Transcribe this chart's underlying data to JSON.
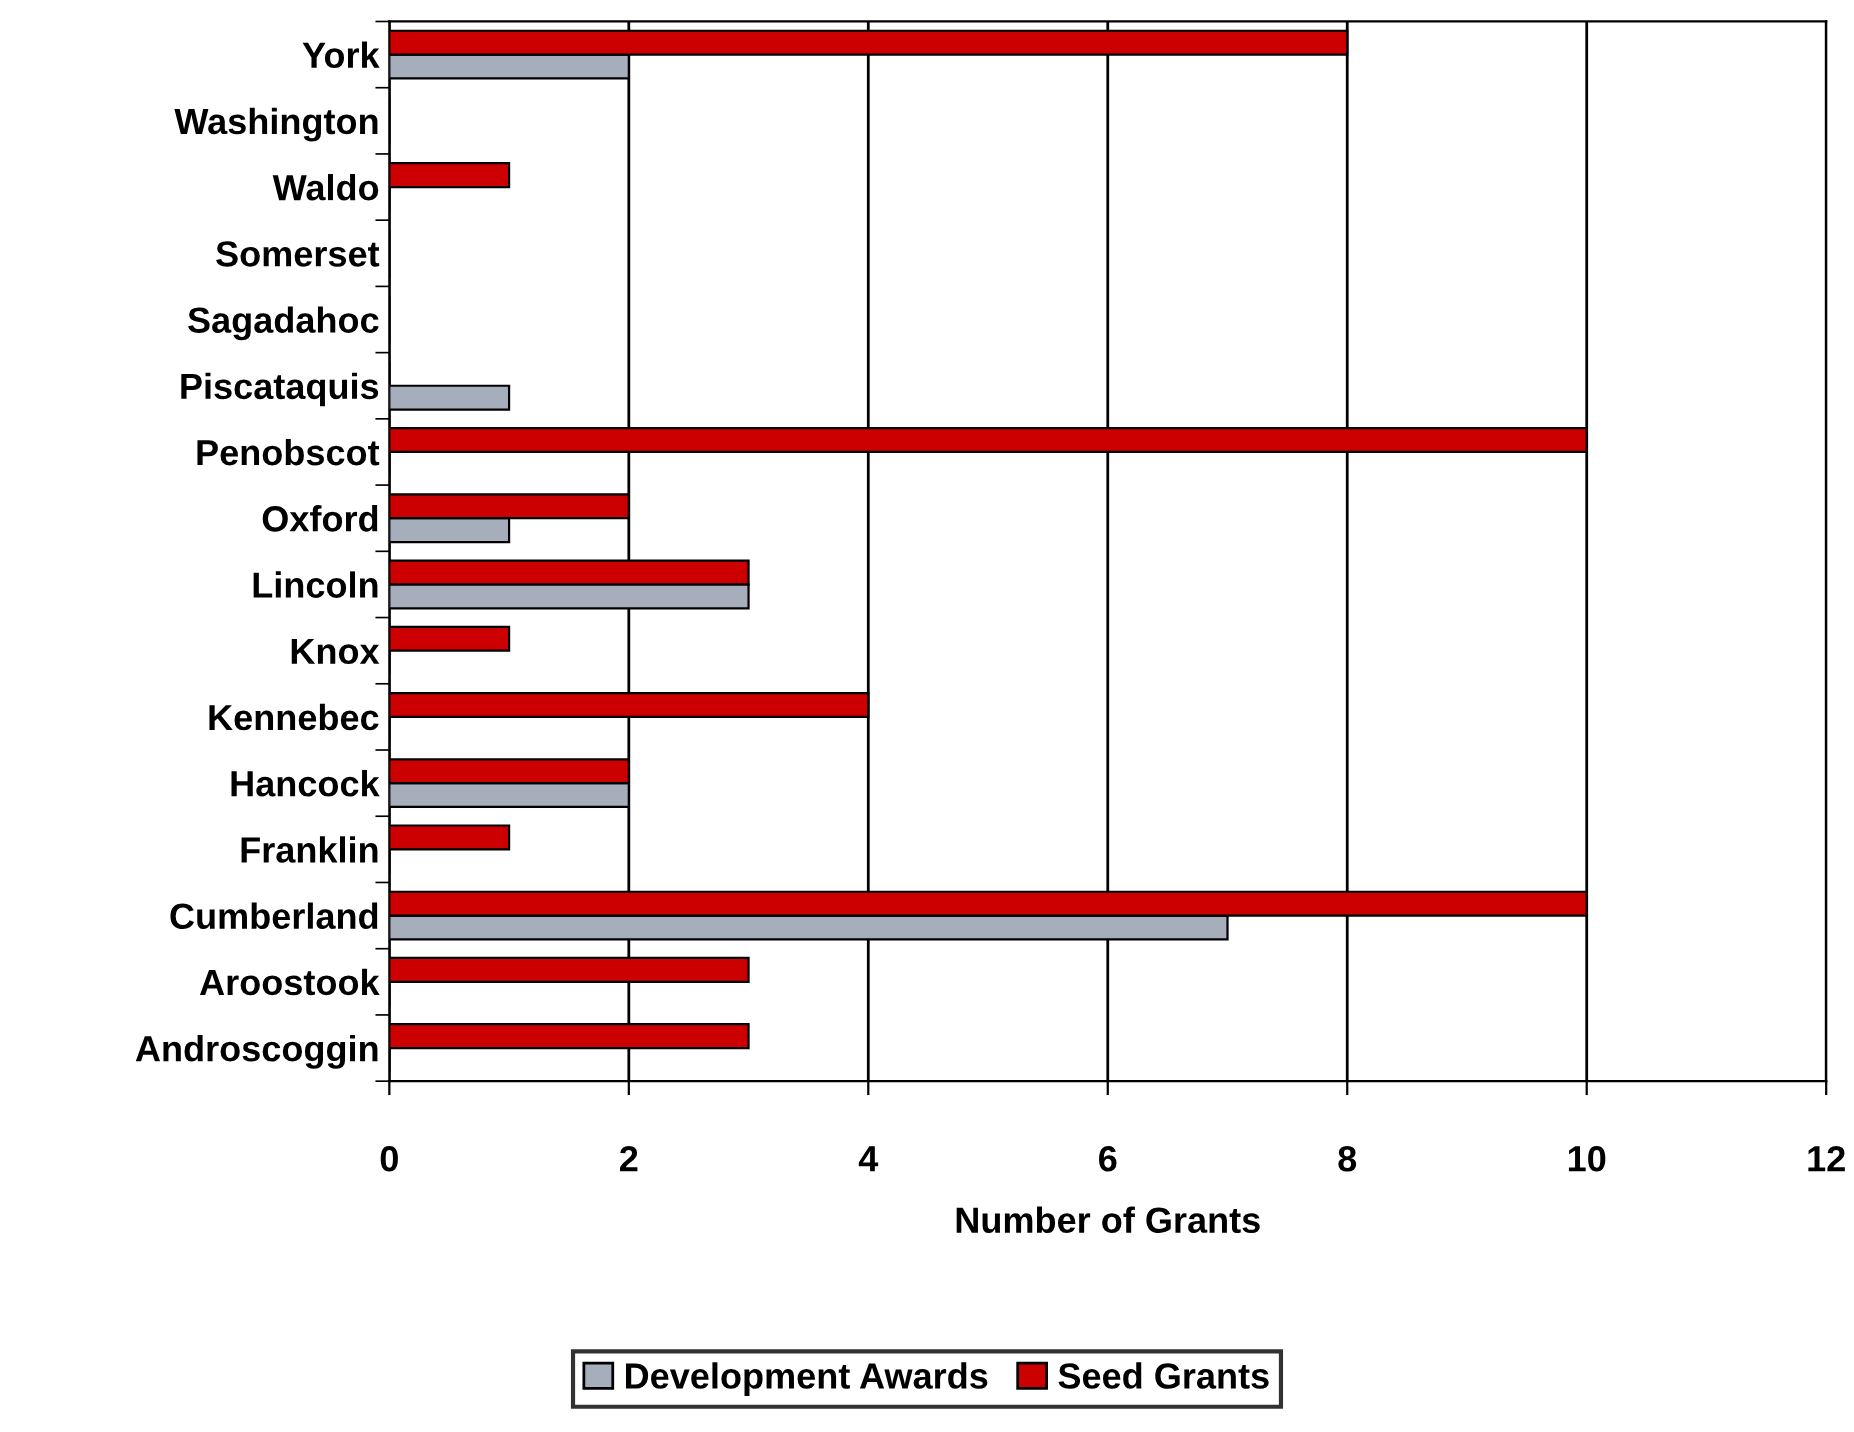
{
  "chart_data": {
    "type": "bar",
    "orientation": "horizontal",
    "xlabel": "Number of Grants",
    "categories": [
      "York",
      "Washington",
      "Waldo",
      "Somerset",
      "Sagadahoc",
      "Piscataquis",
      "Penobscot",
      "Oxford",
      "Lincoln",
      "Knox",
      "Kennebec",
      "Hancock",
      "Franklin",
      "Cumberland",
      "Aroostook",
      "Androscoggin"
    ],
    "series": [
      {
        "name": "Development Awards",
        "color": "#a6adbb",
        "values": [
          2,
          0,
          0,
          0,
          0,
          1,
          0,
          1,
          3,
          0,
          0,
          2,
          0,
          7,
          0,
          0
        ]
      },
      {
        "name": "Seed Grants",
        "color": "#cc0000",
        "values": [
          8,
          0,
          1,
          0,
          0,
          0,
          10,
          2,
          3,
          1,
          4,
          2,
          1,
          10,
          3,
          3
        ]
      }
    ],
    "xlim": [
      0,
      12
    ],
    "xticks": [
      0,
      2,
      4,
      6,
      8,
      10,
      12
    ],
    "grid": "x",
    "legend": "bottom"
  }
}
